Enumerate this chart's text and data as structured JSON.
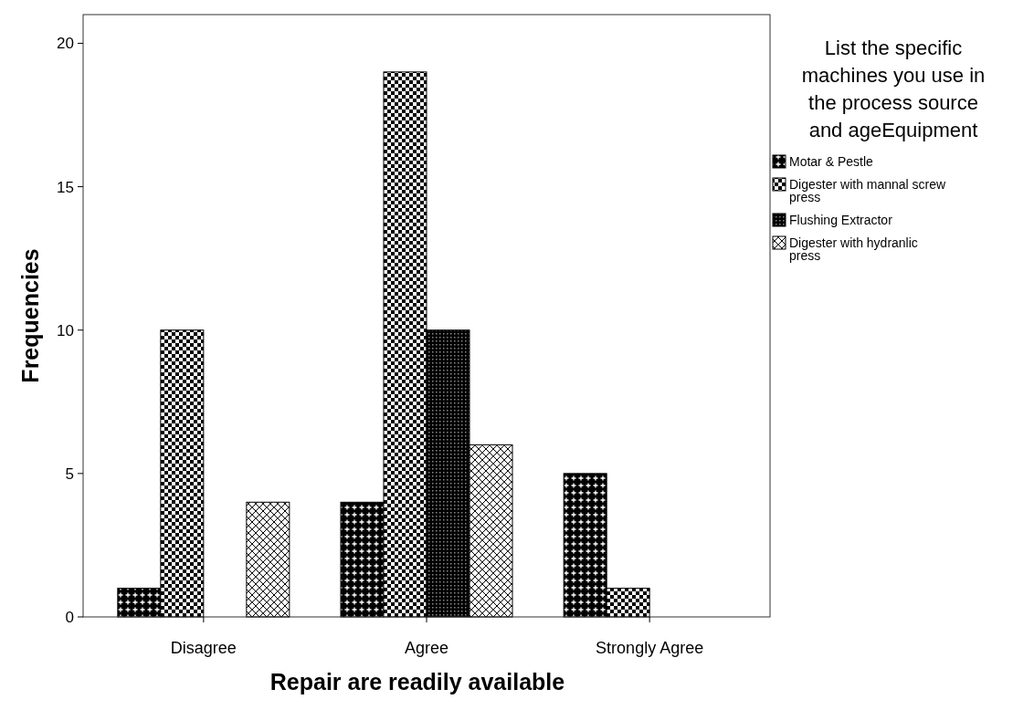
{
  "chart_data": {
    "type": "bar",
    "xlabel": "Repair are readily available",
    "ylabel": "Frequencies",
    "legend_title": "List the specific machines you use in the process source and ageEquipment",
    "categories": [
      "Disagree",
      "Agree",
      "Strongly Agree"
    ],
    "series": [
      {
        "name": "Motar & Pestle",
        "color": "#000000",
        "values": [
          1,
          4,
          5
        ]
      },
      {
        "name": "Digester with mannal screw press",
        "color": "#000000",
        "values": [
          10,
          19,
          1
        ]
      },
      {
        "name": "Flushing Extractor",
        "color": "#000000",
        "values": [
          0,
          10,
          0
        ]
      },
      {
        "name": "Digester with hydranlic press",
        "color": "#000000",
        "values": [
          4,
          6,
          0
        ]
      }
    ],
    "ylim": [
      0,
      21
    ],
    "yticks": [
      0,
      5,
      10,
      15,
      20
    ],
    "legend": "right",
    "grid": false
  }
}
